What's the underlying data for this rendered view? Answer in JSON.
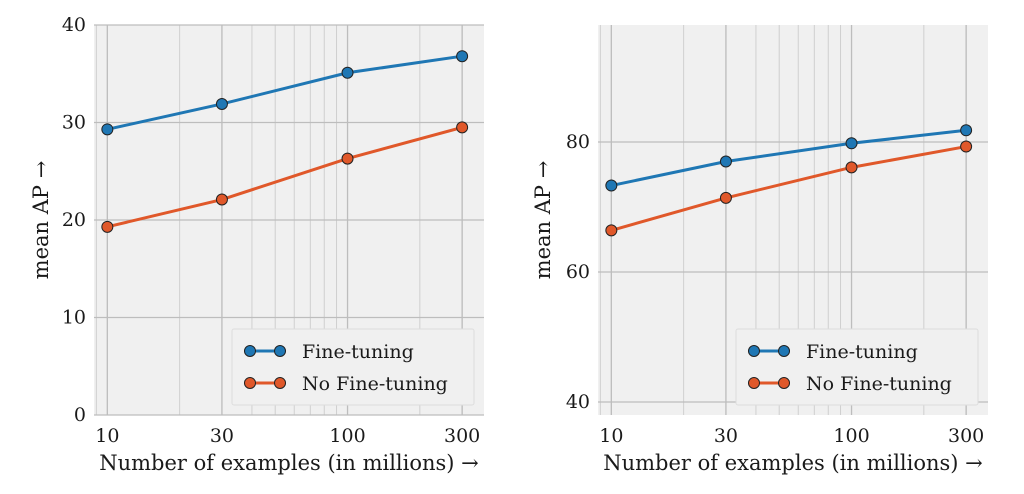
{
  "chart_data": [
    {
      "type": "line",
      "xscale": "log",
      "xlabel": "Number of examples (in millions) →",
      "ylabel": "mean AP →",
      "x": [
        10,
        30,
        100,
        300
      ],
      "xticks": [
        "10",
        "30",
        "100",
        "300"
      ],
      "xlim": [
        8.8,
        370
      ],
      "ylim": [
        0,
        40
      ],
      "yticks": [
        "0",
        "10",
        "20",
        "30",
        "40"
      ],
      "ytick_values": [
        0,
        10,
        20,
        30,
        40
      ],
      "grid": true,
      "legend_position": "lower-right",
      "series": [
        {
          "name": "Fine-tuning",
          "values": [
            29.3,
            31.9,
            35.1,
            36.8
          ],
          "color": "#1f77b4"
        },
        {
          "name": "No Fine-tuning",
          "values": [
            19.3,
            22.1,
            26.3,
            29.5
          ],
          "color": "#e0582a"
        }
      ]
    },
    {
      "type": "line",
      "xscale": "log",
      "xlabel": "Number of examples (in millions) →",
      "ylabel": "mean AP →",
      "x": [
        10,
        30,
        100,
        300
      ],
      "xticks": [
        "10",
        "30",
        "100",
        "300"
      ],
      "xlim": [
        8.8,
        370
      ],
      "ylim": [
        38,
        98
      ],
      "yticks": [
        "40",
        "60",
        "80"
      ],
      "ytick_values": [
        40,
        60,
        80
      ],
      "grid": true,
      "legend_position": "lower-right",
      "series": [
        {
          "name": "Fine-tuning",
          "values": [
            73.3,
            77.0,
            79.8,
            81.8
          ],
          "color": "#1f77b4"
        },
        {
          "name": "No Fine-tuning",
          "values": [
            66.4,
            71.4,
            76.1,
            79.3
          ],
          "color": "#e0582a"
        }
      ]
    }
  ]
}
